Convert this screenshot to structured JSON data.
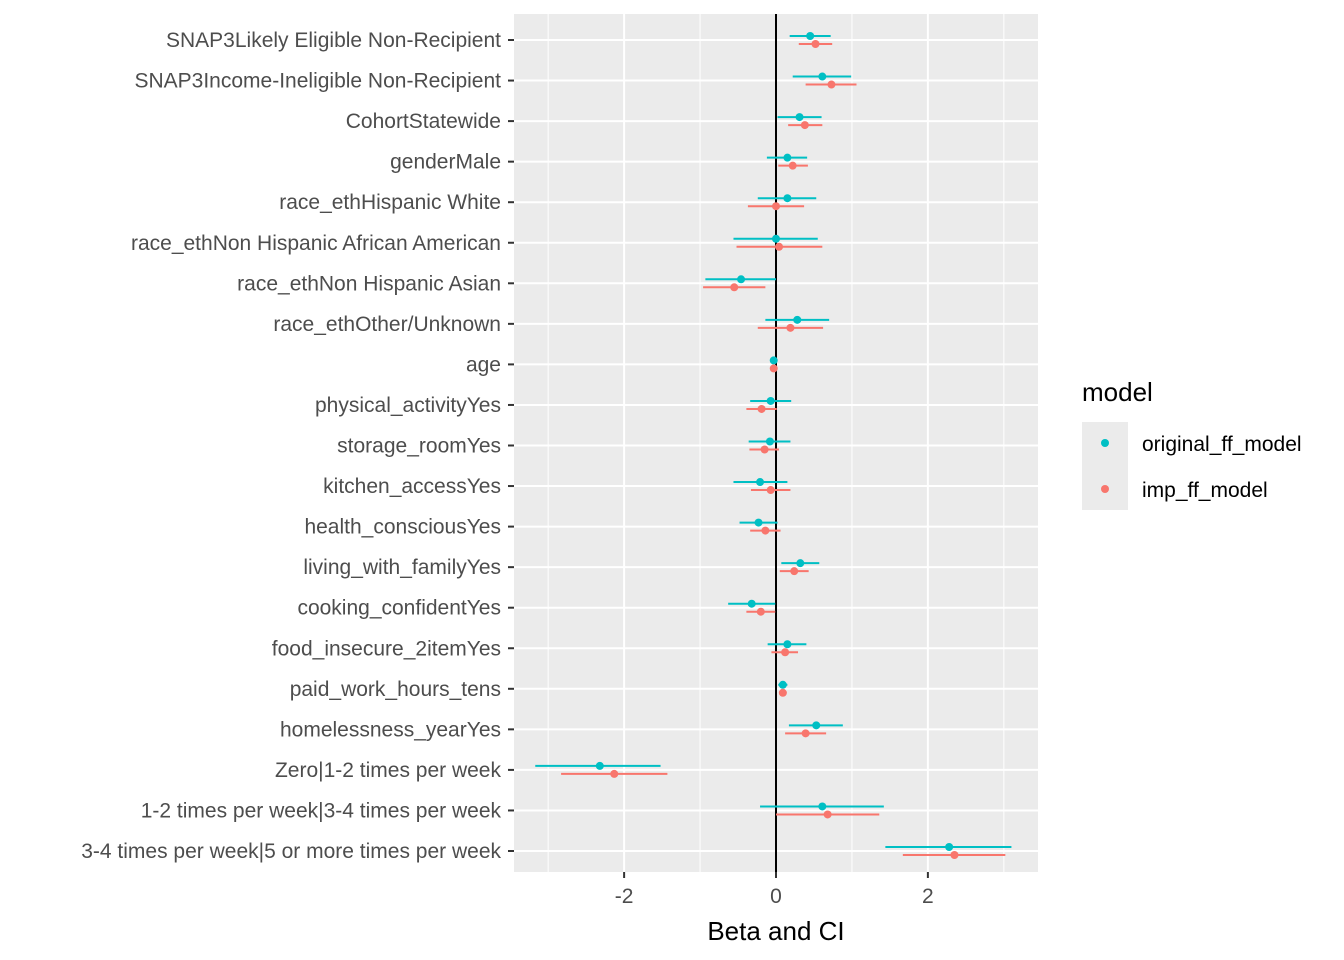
{
  "chart_data": {
    "type": "scatter",
    "subtype": "forest-plot-with-error-bars",
    "title": "",
    "xlabel": "Beta and CI",
    "ylabel": "",
    "xlim": [
      -3.45,
      3.45
    ],
    "x_ticks": [
      -2,
      0,
      2
    ],
    "x_tick_labels": [
      "-2",
      "0",
      "2"
    ],
    "reference_line_x": 0,
    "grid": true,
    "legend_title": "model",
    "legend_position": "right",
    "terms": [
      "SNAP3Likely Eligible Non-Recipient",
      "SNAP3Income-Ineligible Non-Recipient",
      "CohortStatewide",
      "genderMale",
      "race_ethHispanic White",
      "race_ethNon Hispanic African American",
      "race_ethNon Hispanic Asian",
      "race_ethOther/Unknown",
      "age",
      "physical_activityYes",
      "storage_roomYes",
      "kitchen_accessYes",
      "health_consciousYes",
      "living_with_familyYes",
      "cooking_confidentYes",
      "food_insecure_2itemYes",
      "paid_work_hours_tens",
      "homelessness_yearYes",
      "Zero|1-2 times per week",
      "1-2 times per week|3-4 times per week",
      "3-4 times per week|5 or more times per week"
    ],
    "series": [
      {
        "name": "original_ff_model",
        "color": "#00BFC4",
        "estimate": [
          0.45,
          0.61,
          0.31,
          0.15,
          0.15,
          0.0,
          -0.46,
          0.28,
          -0.03,
          -0.07,
          -0.08,
          -0.21,
          -0.23,
          0.32,
          -0.32,
          0.15,
          0.09,
          0.53,
          -2.32,
          0.61,
          2.28
        ],
        "ci_low": [
          0.18,
          0.22,
          0.02,
          -0.12,
          -0.24,
          -0.56,
          -0.93,
          -0.14,
          -0.06,
          -0.34,
          -0.36,
          -0.56,
          -0.48,
          0.07,
          -0.63,
          -0.11,
          0.03,
          0.17,
          -3.17,
          -0.21,
          1.44
        ],
        "ci_high": [
          0.72,
          0.99,
          0.6,
          0.41,
          0.53,
          0.55,
          0.0,
          0.7,
          0.0,
          0.2,
          0.19,
          0.15,
          0.02,
          0.57,
          -0.01,
          0.4,
          0.15,
          0.88,
          -1.52,
          1.42,
          3.1
        ]
      },
      {
        "name": "imp_ff_model",
        "color": "#F8766D",
        "estimate": [
          0.52,
          0.73,
          0.38,
          0.22,
          0.0,
          0.04,
          -0.55,
          0.19,
          -0.03,
          -0.19,
          -0.15,
          -0.07,
          -0.14,
          0.24,
          -0.2,
          0.12,
          0.09,
          0.39,
          -2.13,
          0.68,
          2.35
        ],
        "ci_low": [
          0.3,
          0.39,
          0.16,
          0.03,
          -0.37,
          -0.52,
          -0.96,
          -0.24,
          -0.06,
          -0.39,
          -0.35,
          -0.33,
          -0.34,
          0.05,
          -0.39,
          -0.06,
          0.04,
          0.12,
          -2.83,
          0.0,
          1.67
        ],
        "ci_high": [
          0.74,
          1.06,
          0.61,
          0.42,
          0.37,
          0.61,
          -0.14,
          0.62,
          0.0,
          0.01,
          0.04,
          0.19,
          0.06,
          0.43,
          -0.01,
          0.29,
          0.14,
          0.66,
          -1.43,
          1.36,
          3.02
        ]
      }
    ]
  }
}
